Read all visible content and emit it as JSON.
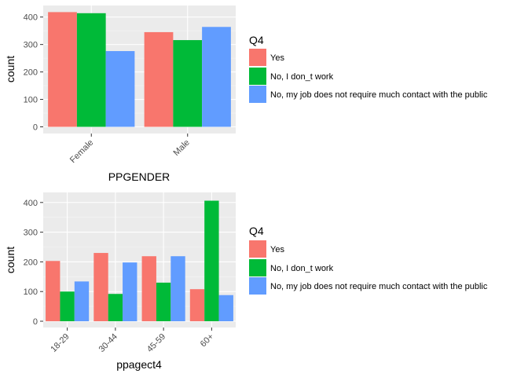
{
  "colors": {
    "panel_bg": "#EBEBEB",
    "grid": "#FFFFFF",
    "tick": "#333333",
    "series": [
      "#F8766D",
      "#00BA38",
      "#619CFF"
    ]
  },
  "chart_data": [
    {
      "type": "bar",
      "grouped": true,
      "xlabel": "PPGENDER",
      "ylabel": "count",
      "categories": [
        "Female",
        "Male"
      ],
      "series": [
        {
          "name": "Yes",
          "values": [
            418,
            345
          ]
        },
        {
          "name": "No, I don_t work",
          "values": [
            414,
            316
          ]
        },
        {
          "name": "No, my job does not require much contact with the public",
          "values": [
            276,
            364
          ]
        }
      ],
      "ylim": [
        0,
        440
      ],
      "yticks": [
        0,
        100,
        200,
        300,
        400
      ],
      "legend": {
        "title": "Q4",
        "position": "right"
      },
      "grid": true
    },
    {
      "type": "bar",
      "grouped": true,
      "xlabel": "ppagect4",
      "ylabel": "count",
      "categories": [
        "18-29",
        "30-44",
        "45-59",
        "60+"
      ],
      "series": [
        {
          "name": "Yes",
          "values": [
            203,
            230,
            219,
            108
          ]
        },
        {
          "name": "No, I don_t work",
          "values": [
            100,
            92,
            130,
            406
          ]
        },
        {
          "name": "No, my job does not require much contact with the public",
          "values": [
            134,
            198,
            219,
            88
          ]
        }
      ],
      "ylim": [
        0,
        425
      ],
      "yticks": [
        0,
        100,
        200,
        300,
        400
      ],
      "legend": {
        "title": "Q4",
        "position": "right"
      },
      "grid": true
    }
  ]
}
